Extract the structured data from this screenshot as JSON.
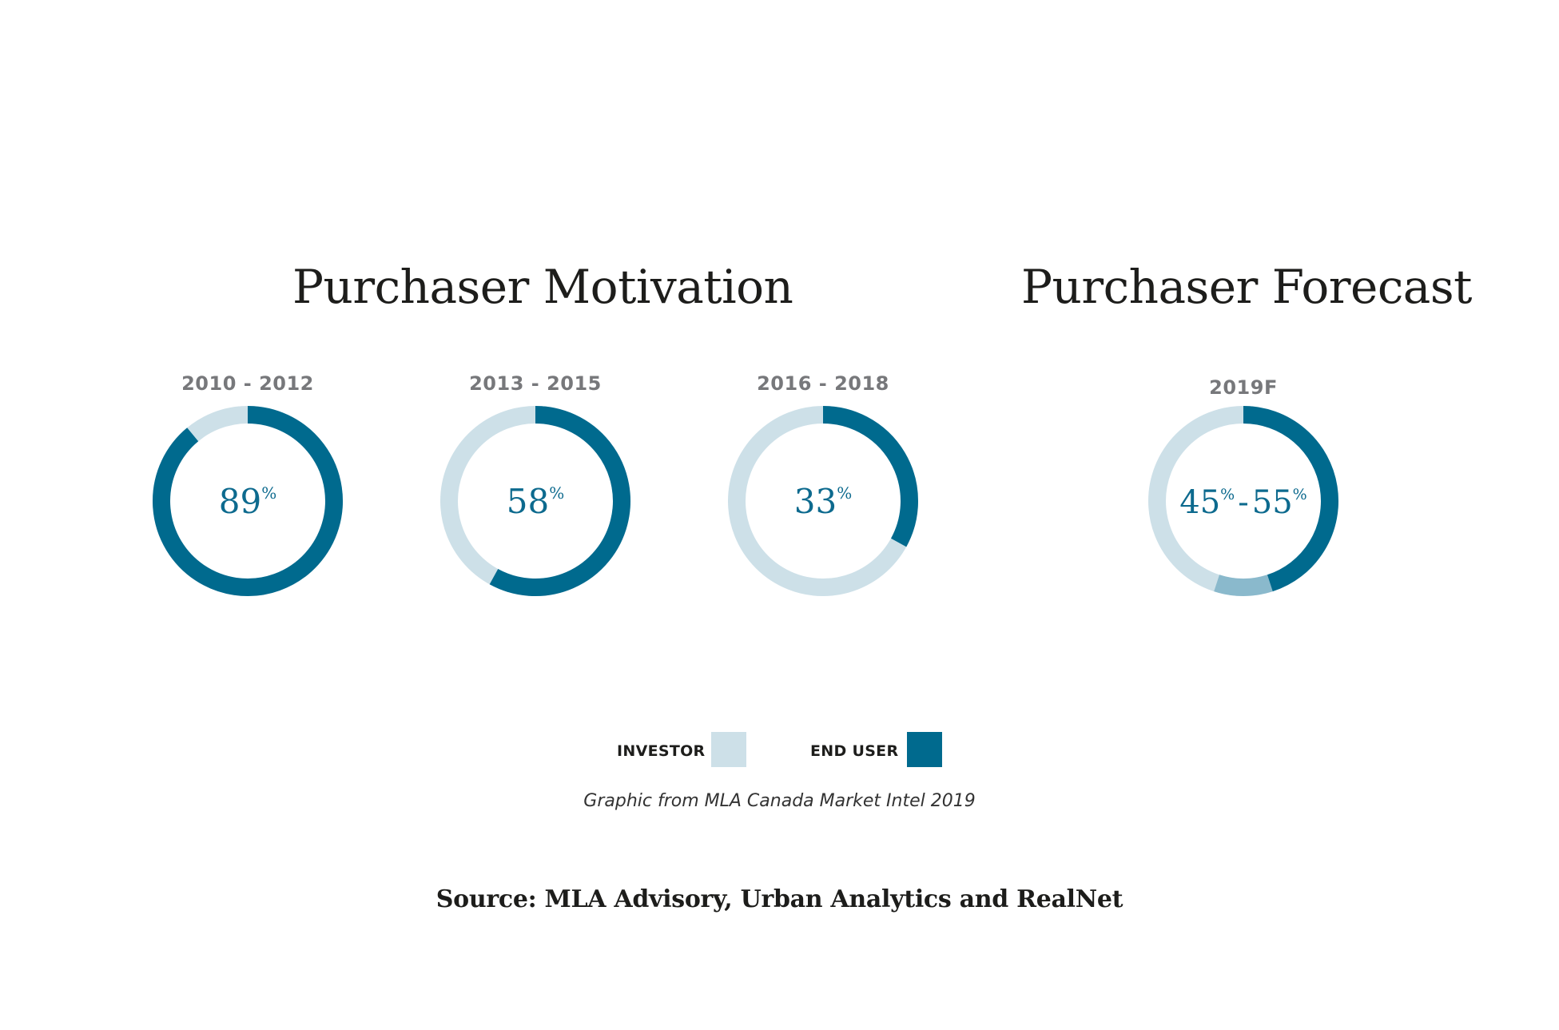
{
  "headings": {
    "motivation": "Purchaser Motivation",
    "forecast": "Purchaser Forecast"
  },
  "colors": {
    "investor": "#cde0e8",
    "end_user": "#006a8e",
    "range": "#8ab9cc",
    "value_text": "#0d6a8e"
  },
  "chart_data": {
    "type": "pie",
    "variant": "donut",
    "charts": [
      {
        "period": "2010 - 2012",
        "end_user": 89,
        "investor": 11,
        "label": "89",
        "suffix": "%"
      },
      {
        "period": "2013 - 2015",
        "end_user": 58,
        "investor": 42,
        "label": "58",
        "suffix": "%"
      },
      {
        "period": "2016 - 2018",
        "end_user": 33,
        "investor": 67,
        "label": "33",
        "suffix": "%"
      },
      {
        "period": "2019F",
        "end_user_low": 45,
        "end_user_high": 55,
        "label_low": "45",
        "label_high": "55",
        "suffix": "%",
        "dash": "-"
      }
    ],
    "legend": [
      {
        "name": "INVESTOR",
        "color": "#cde0e8"
      },
      {
        "name": "END USER",
        "color": "#006a8e"
      }
    ]
  },
  "caption": "Graphic from MLA Canada Market Intel 2019",
  "source": "Source: MLA Advisory, Urban Analytics and RealNet"
}
